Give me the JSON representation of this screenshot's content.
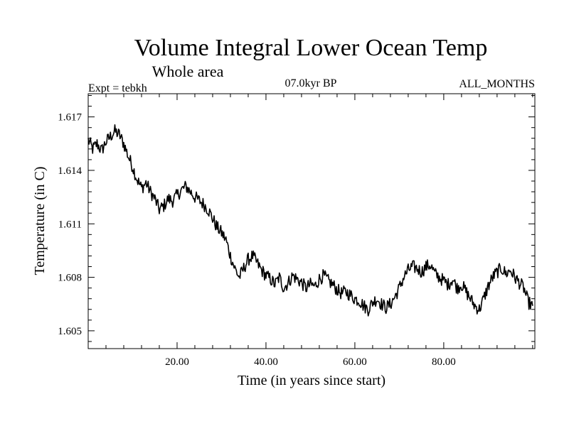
{
  "chart_data": {
    "type": "line",
    "title": "Volume Integral Lower Ocean Temp",
    "subtitle": "Whole area",
    "annotations": {
      "experiment": "Expt = tebkh",
      "period": "07.0kyr BP",
      "months": "ALL_MONTHS"
    },
    "xlabel": "Time (in years since start)",
    "ylabel": "Temperature (in C)",
    "xlim": [
      0,
      100.5
    ],
    "ylim": [
      1.604,
      1.6183
    ],
    "x_ticks": [
      20,
      40,
      60,
      80
    ],
    "x_tick_labels": [
      "20.00",
      "40.00",
      "60.00",
      "80.00"
    ],
    "y_ticks": [
      1.605,
      1.608,
      1.611,
      1.614,
      1.617
    ],
    "y_tick_labels": [
      "1.605",
      "1.608",
      "1.611",
      "1.614",
      "1.617"
    ],
    "grid": false,
    "series": [
      {
        "name": "Volume integral lower ocean temperature",
        "color": "#000000",
        "x": [
          0,
          1,
          2,
          3,
          4,
          5,
          6,
          7,
          8,
          9,
          10,
          11,
          12,
          13,
          14,
          15,
          16,
          17,
          18,
          19,
          20,
          21,
          22,
          23,
          24,
          25,
          26,
          27,
          28,
          29,
          30,
          31,
          32,
          33,
          34,
          35,
          36,
          37,
          38,
          39,
          40,
          41,
          42,
          43,
          44,
          45,
          46,
          47,
          48,
          49,
          50,
          51,
          52,
          53,
          54,
          55,
          56,
          57,
          58,
          59,
          60,
          61,
          62,
          63,
          64,
          65,
          66,
          67,
          68,
          69,
          70,
          71,
          72,
          73,
          74,
          75,
          76,
          77,
          78,
          79,
          80,
          81,
          82,
          83,
          84,
          85,
          86,
          87,
          88,
          89,
          90,
          91,
          92,
          93,
          94,
          95,
          96,
          97,
          98,
          99,
          100
        ],
        "values": [
          1.6157,
          1.6152,
          1.6155,
          1.6151,
          1.6156,
          1.6159,
          1.6162,
          1.616,
          1.6155,
          1.6148,
          1.6142,
          1.6135,
          1.613,
          1.6133,
          1.6128,
          1.6124,
          1.6118,
          1.612,
          1.6124,
          1.6123,
          1.6126,
          1.6129,
          1.6131,
          1.6128,
          1.6125,
          1.6123,
          1.6121,
          1.6118,
          1.6113,
          1.6108,
          1.6105,
          1.6101,
          1.6092,
          1.6085,
          1.608,
          1.6085,
          1.609,
          1.6092,
          1.6088,
          1.6084,
          1.6081,
          1.6079,
          1.6076,
          1.608,
          1.6074,
          1.6077,
          1.6081,
          1.6079,
          1.6077,
          1.6074,
          1.6076,
          1.6075,
          1.6079,
          1.6081,
          1.6078,
          1.6076,
          1.6073,
          1.6071,
          1.6072,
          1.607,
          1.6068,
          1.6067,
          1.6064,
          1.6062,
          1.6066,
          1.6068,
          1.6065,
          1.6063,
          1.6065,
          1.6069,
          1.6074,
          1.608,
          1.6084,
          1.6086,
          1.6085,
          1.6083,
          1.6086,
          1.6087,
          1.6082,
          1.608,
          1.6078,
          1.6076,
          1.6079,
          1.6074,
          1.6076,
          1.6072,
          1.6068,
          1.6064,
          1.6062,
          1.6068,
          1.6075,
          1.608,
          1.6083,
          1.6085,
          1.6082,
          1.6084,
          1.608,
          1.6077,
          1.6074,
          1.6066,
          1.6064
        ]
      }
    ]
  }
}
